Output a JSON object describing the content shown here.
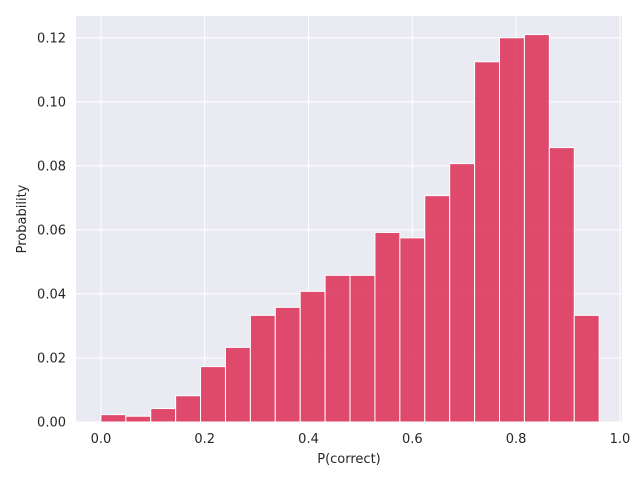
{
  "chart_data": {
    "type": "bar",
    "title": "",
    "xlabel": "P(correct)",
    "ylabel": "Probability",
    "xlim": [
      -0.048,
      1.004
    ],
    "ylim": [
      0,
      0.1268
    ],
    "grid": true,
    "bar_color": "#dc2d55",
    "bar_edge_color": "#ffffff",
    "plot_background": "#eaeaf2",
    "grid_color": "#ffffff",
    "x_ticks": [
      0.0,
      0.2,
      0.4,
      0.6,
      0.8,
      1.0
    ],
    "x_tick_labels": [
      "0.0",
      "0.2",
      "0.4",
      "0.6",
      "0.8",
      "1.0"
    ],
    "y_ticks": [
      0.0,
      0.02,
      0.04,
      0.06,
      0.08,
      0.1,
      0.12
    ],
    "y_tick_labels": [
      "0.00",
      "0.02",
      "0.04",
      "0.06",
      "0.08",
      "0.10",
      "0.12"
    ],
    "bin_edges": [
      0.0,
      0.048,
      0.096,
      0.144,
      0.192,
      0.24,
      0.288,
      0.336,
      0.384,
      0.432,
      0.48,
      0.528,
      0.576,
      0.624,
      0.672,
      0.72,
      0.768,
      0.816,
      0.864,
      0.912,
      0.96
    ],
    "values": [
      0.0023,
      0.0018,
      0.0042,
      0.0082,
      0.0173,
      0.0233,
      0.0333,
      0.0358,
      0.0408,
      0.0458,
      0.0458,
      0.0592,
      0.0575,
      0.0707,
      0.0807,
      0.1125,
      0.12,
      0.121,
      0.0857,
      0.0333
    ]
  }
}
